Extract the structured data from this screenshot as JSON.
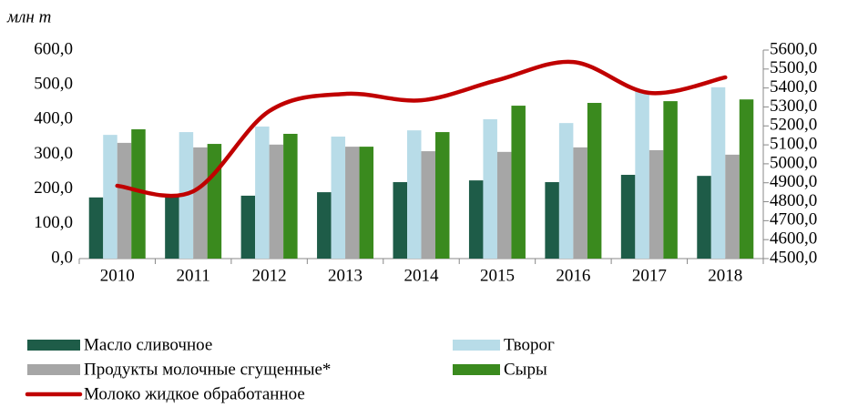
{
  "chart_data": {
    "type": "bar-line",
    "unit_label": "млн т",
    "categories": [
      "2010",
      "2011",
      "2012",
      "2013",
      "2014",
      "2015",
      "2016",
      "2017",
      "2018"
    ],
    "series": [
      {
        "name": "Масло сливочное",
        "color": "#1e5c48",
        "type": "bar",
        "values": [
          176,
          183,
          181,
          191,
          220,
          225,
          220,
          241,
          238
        ]
      },
      {
        "name": "Творог",
        "color": "#b8dce8",
        "type": "bar",
        "values": [
          356,
          364,
          380,
          351,
          369,
          401,
          390,
          482,
          493
        ]
      },
      {
        "name": "Продукты молочные сгущенные*",
        "color": "#a6a6a6",
        "type": "bar",
        "values": [
          333,
          320,
          328,
          322,
          309,
          307,
          320,
          312,
          299
        ]
      },
      {
        "name": "Сыры",
        "color": "#3a8a1e",
        "type": "bar",
        "values": [
          372,
          330,
          359,
          322,
          364,
          440,
          448,
          453,
          458
        ]
      },
      {
        "name": "Молоко жидкое обработанное",
        "color": "#c00000",
        "type": "line",
        "axis": "y2",
        "values": [
          4884,
          4855,
          5278,
          5369,
          5335,
          5441,
          5537,
          5374,
          5456
        ]
      }
    ],
    "ylim": [
      0,
      600
    ],
    "yticks": [
      {
        "value": 0,
        "label": "0,0"
      },
      {
        "value": 100,
        "label": "100,0"
      },
      {
        "value": 200,
        "label": "200,0"
      },
      {
        "value": 300,
        "label": "300,0"
      },
      {
        "value": 400,
        "label": "400,0"
      },
      {
        "value": 500,
        "label": "500,0"
      },
      {
        "value": 600,
        "label": "600,0"
      }
    ],
    "y2lim": [
      4500,
      5600
    ],
    "y2ticks": [
      {
        "value": 4500,
        "label": "4500,0"
      },
      {
        "value": 4600,
        "label": "4600,0"
      },
      {
        "value": 4700,
        "label": "4700,0"
      },
      {
        "value": 4800,
        "label": "4800,0"
      },
      {
        "value": 4900,
        "label": "4900,0"
      },
      {
        "value": 5000,
        "label": "5000,0"
      },
      {
        "value": 5100,
        "label": "5100,0"
      },
      {
        "value": 5200,
        "label": "5200,0"
      },
      {
        "value": 5300,
        "label": "5300,0"
      },
      {
        "value": 5400,
        "label": "5400,0"
      },
      {
        "value": 5500,
        "label": "5500,0"
      },
      {
        "value": 5600,
        "label": "5600,0"
      }
    ],
    "grid": false
  }
}
